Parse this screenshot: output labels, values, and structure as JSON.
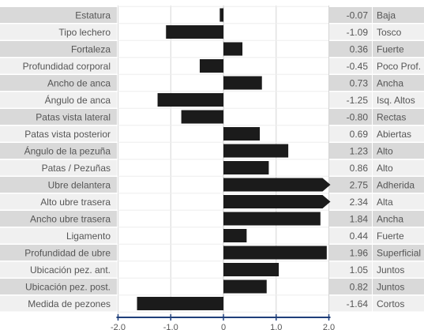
{
  "chart_data": {
    "type": "bar",
    "orientation": "horizontal",
    "title": "",
    "xlabel": "",
    "ylabel": "",
    "xlim": [
      -2.0,
      2.0
    ],
    "x_ticks": [
      "-2,0",
      "-1,0",
      "0",
      "1,0",
      "2,0"
    ],
    "grid": true,
    "legend": "none",
    "bar_color": "#1b1b1b",
    "axis_color": "#1f3f7a",
    "row_colors": [
      "#d9d9d9",
      "#f0f0f0"
    ],
    "categories": [
      "Estatura",
      "Tipo lechero",
      "Fortaleza",
      "Profundidad corporal",
      "Ancho de anca",
      "Ángulo de anca",
      "Patas vista lateral",
      "Patas vista posterior",
      "Ángulo de la pezuña",
      "Patas / Pezuñas",
      "Ubre delantera",
      "Alto ubre trasera",
      "Ancho ubre trasera",
      "Ligamento",
      "Profundidad de ubre",
      "Ubicación pez. ant.",
      "Ubicación pez. post.",
      "Medida de pezones"
    ],
    "values": [
      -0.07,
      -1.09,
      0.36,
      -0.45,
      0.73,
      -1.25,
      -0.8,
      0.69,
      1.23,
      0.86,
      2.75,
      2.34,
      1.84,
      0.44,
      1.96,
      1.05,
      0.82,
      -1.64
    ],
    "value_labels": [
      "-0.07",
      "-1.09",
      "0.36",
      "-0.45",
      "0.73",
      "-1.25",
      "-0.80",
      "0.69",
      "1.23",
      "0.86",
      "2.75",
      "2.34",
      "1.84",
      "0.44",
      "1.96",
      "1.05",
      "0.82",
      "-1.64"
    ],
    "descriptors": [
      "Baja",
      "Tosco",
      "Fuerte",
      "Poco Prof.",
      "Ancha",
      "Isq. Altos",
      "Rectas",
      "Abiertas",
      "Alto",
      "Alto",
      "Adherida",
      "Alta",
      "Ancha",
      "Fuerte",
      "Superficial",
      "Juntos",
      "Juntos",
      "Cortos"
    ]
  }
}
